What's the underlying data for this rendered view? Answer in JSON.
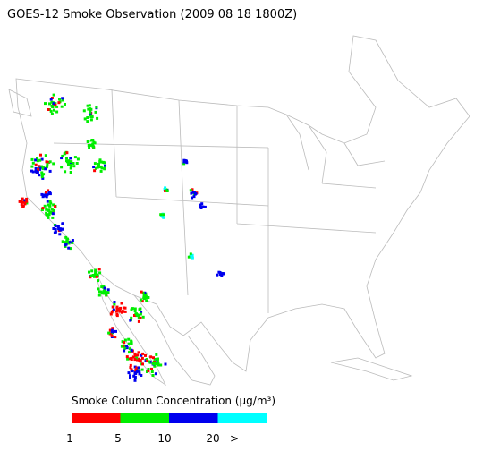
{
  "title": "GOES-12 Smoke Observation (2009 08 18  1800Z)",
  "legend": {
    "title": "Smoke Column Concentration (µg/m³)",
    "colors": [
      "#ff0000",
      "#00ee00",
      "#0000ee",
      "#00ffff"
    ],
    "ticks": [
      "1",
      "5",
      "10",
      "20",
      ">"
    ]
  }
}
